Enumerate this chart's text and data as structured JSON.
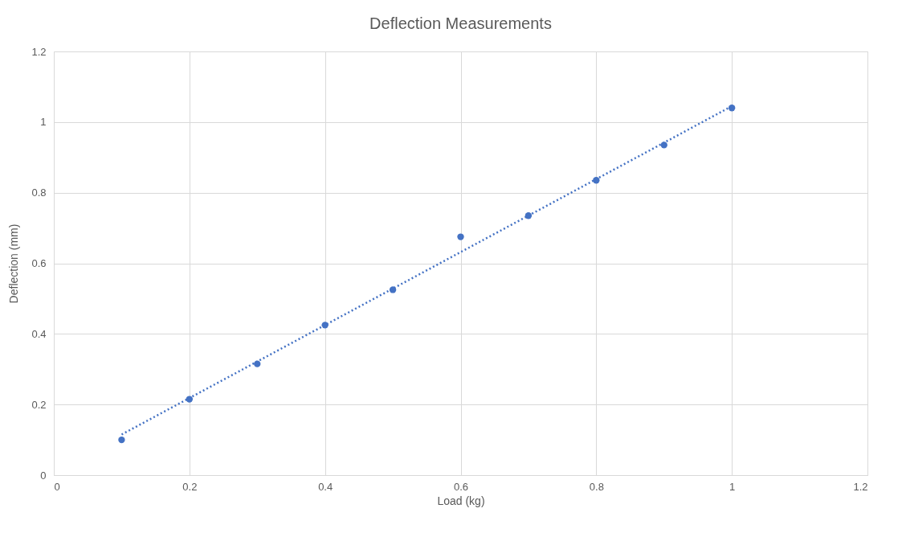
{
  "chart_data": {
    "type": "scatter",
    "title": "Deflection Measurements",
    "xlabel": "Load (kg)",
    "ylabel": "Deflection (mm)",
    "x": [
      0.1,
      0.2,
      0.3,
      0.4,
      0.5,
      0.6,
      0.7,
      0.8,
      0.9,
      1.0
    ],
    "series": [
      {
        "color": "#4472c4",
        "marker": "circle",
        "values": [
          0.1,
          0.215,
          0.315,
          0.425,
          0.525,
          0.675,
          0.735,
          0.835,
          0.935,
          1.04
        ]
      },
      {
        "type": "line",
        "color": "#4472c4",
        "line_style": "dotted",
        "x": [
          0.1,
          1.0
        ],
        "values": [
          0.115,
          1.045
        ]
      }
    ],
    "xlim": [
      0,
      1.2
    ],
    "xticks": [
      0,
      0.2,
      0.4,
      0.6,
      0.8,
      1,
      1.2
    ],
    "ylim": [
      0,
      1.2
    ],
    "yticks": [
      0,
      0.2,
      0.4,
      0.6,
      0.8,
      1,
      1.2
    ],
    "grid": true
  }
}
